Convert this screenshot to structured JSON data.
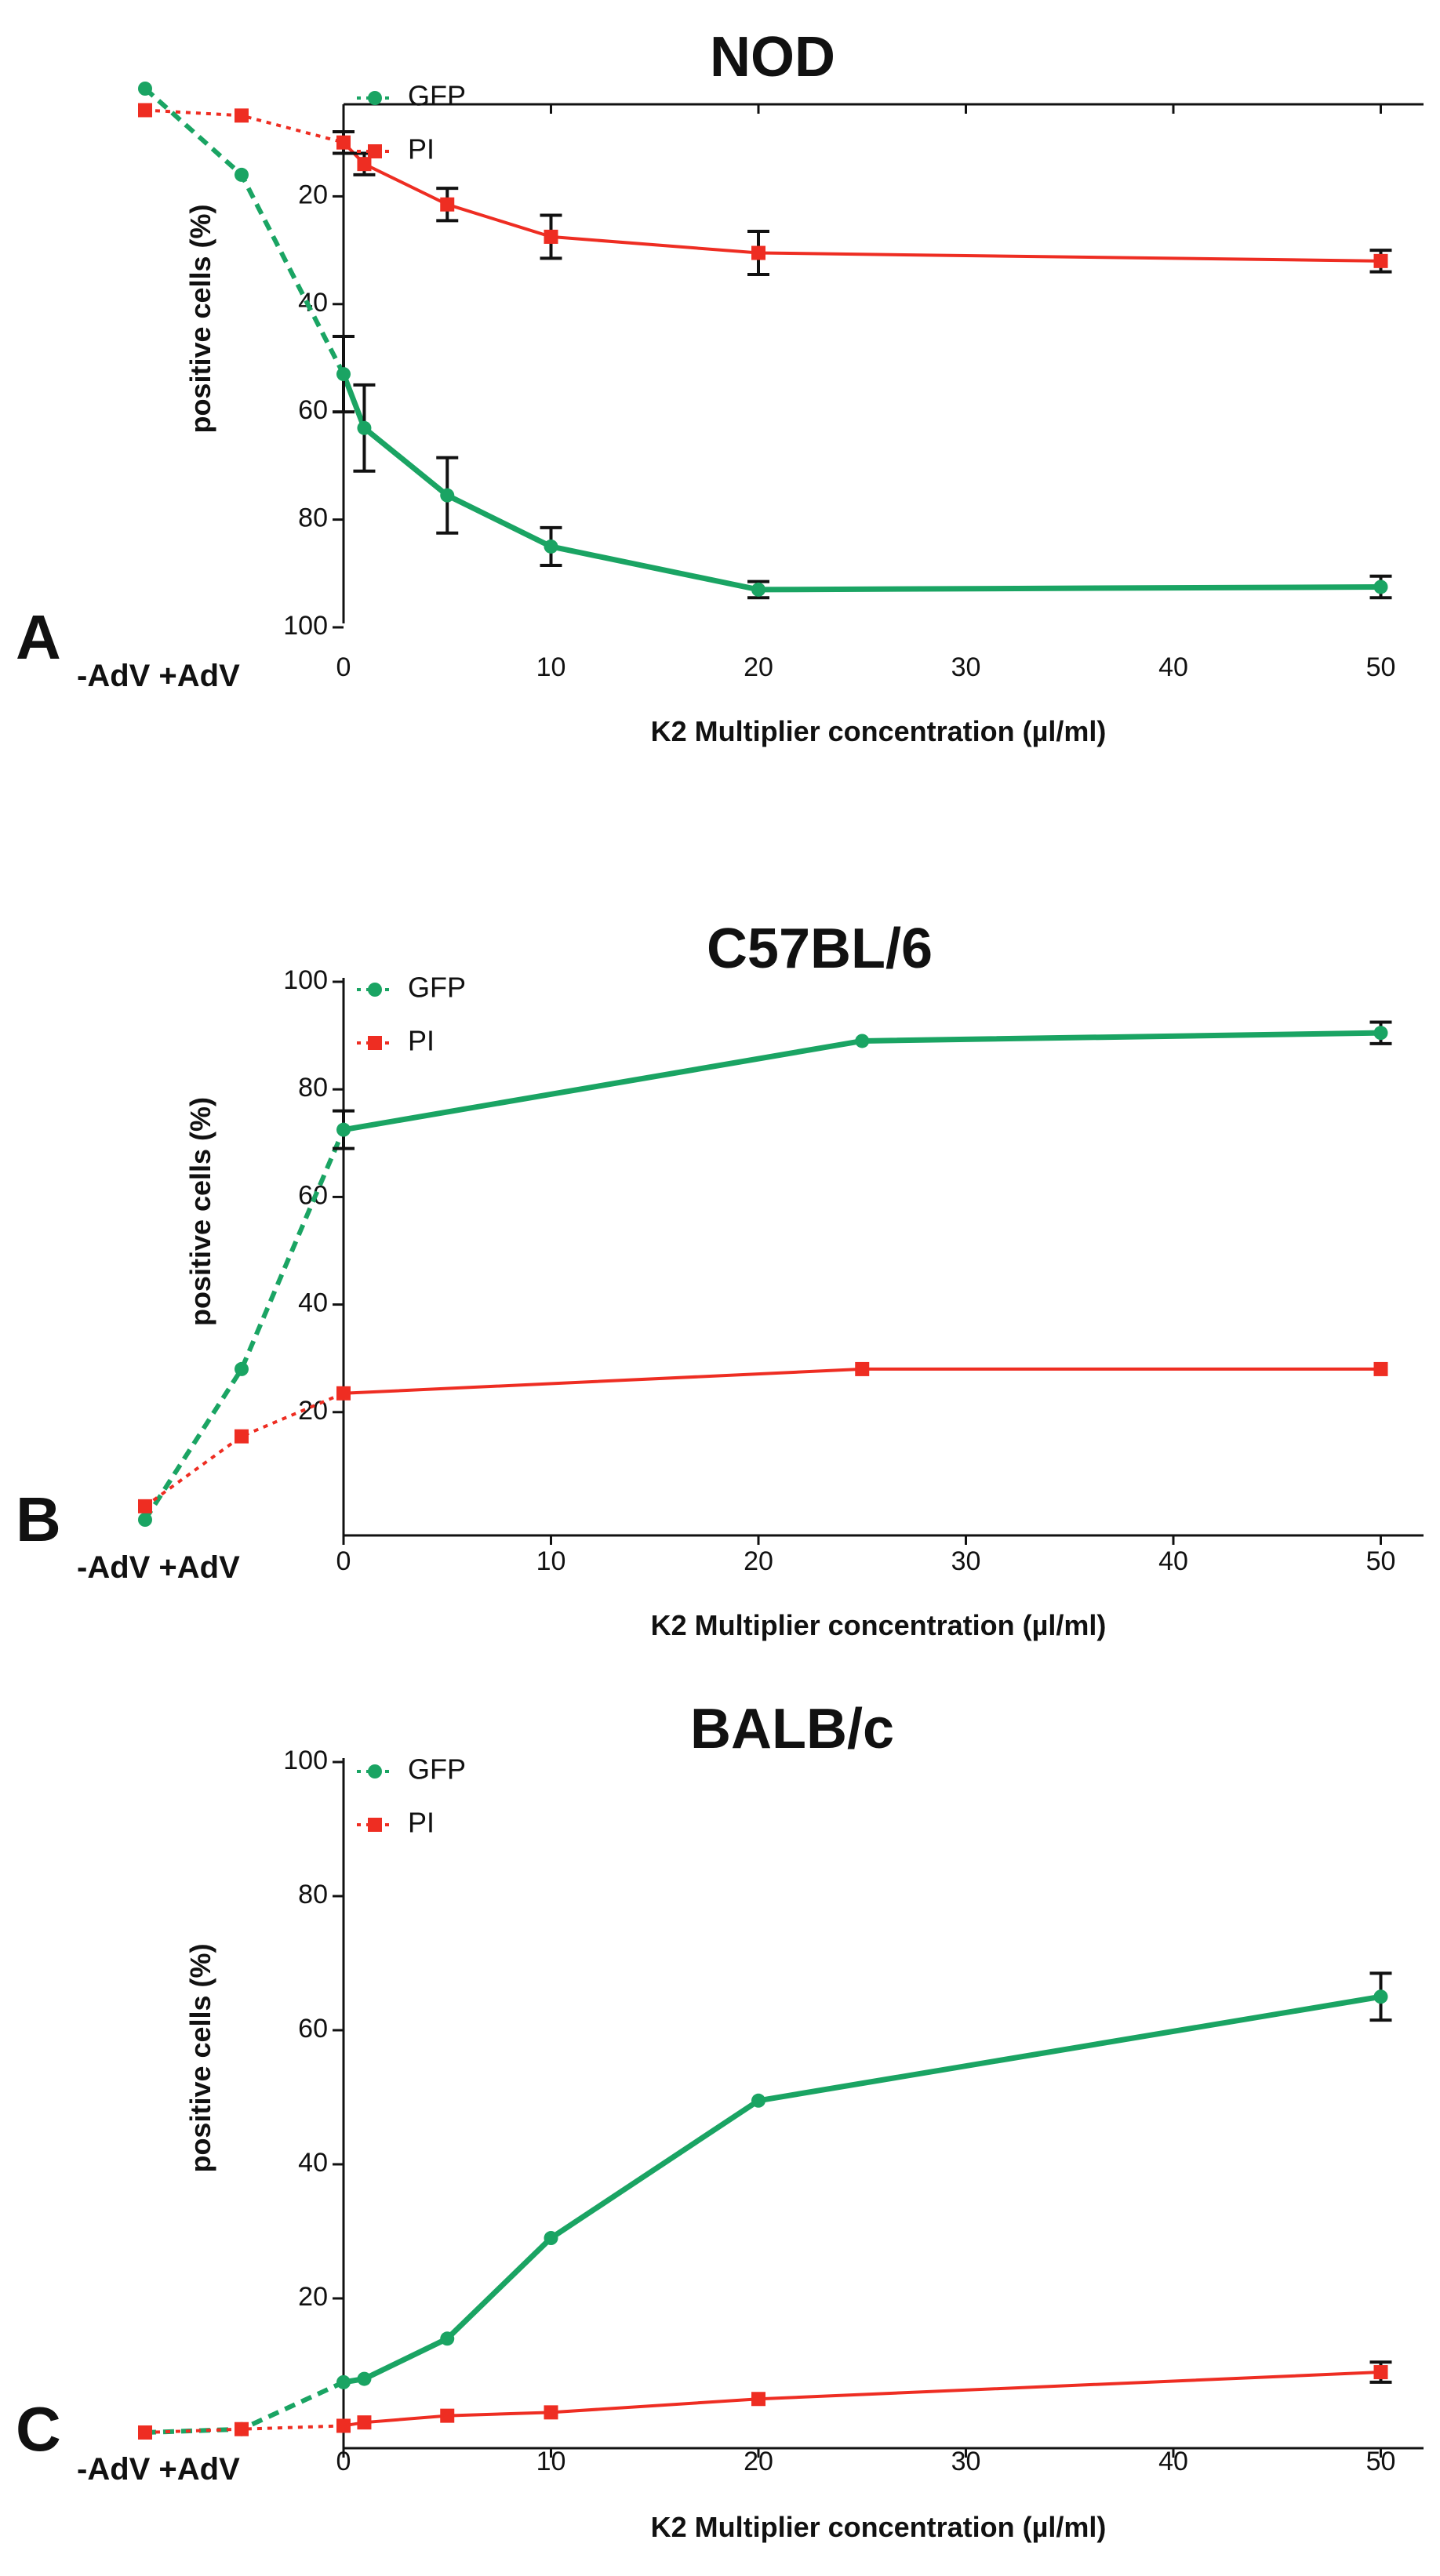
{
  "colors": {
    "gfp": "#1aa463",
    "pi": "#ee2d22",
    "axis": "#111111"
  },
  "chart_data": [
    {
      "type": "line",
      "panel": "A",
      "title": "NOD",
      "xlabel": "K2 Multiplier concentration (µl/ml)",
      "ylabel": "positive cells (%)",
      "ylim": [
        0,
        100
      ],
      "xlim": [
        0,
        50
      ],
      "x_ticks": [
        "0",
        "10",
        "20",
        "30",
        "40",
        "50"
      ],
      "y_ticks": [
        "20",
        "40",
        "60",
        "80",
        "100"
      ],
      "control_labels": [
        "-AdV",
        "+AdV"
      ],
      "legend_position": "top-left",
      "series": [
        {
          "name": "GFP",
          "color_key": "gfp",
          "marker": "circle",
          "controls": [
            {
              "label": "-AdV",
              "value": 0
            },
            {
              "label": "+AdV",
              "value": 16
            }
          ],
          "x": [
            0,
            1,
            5,
            10,
            20,
            50
          ],
          "values": [
            53,
            63,
            75.5,
            85,
            93,
            92.5
          ],
          "errors": [
            7,
            8,
            7,
            3.5,
            1.5,
            2
          ]
        },
        {
          "name": "PI",
          "color_key": "pi",
          "marker": "square",
          "controls": [
            {
              "label": "-AdV",
              "value": 4
            },
            {
              "label": "+AdV",
              "value": 5
            }
          ],
          "x": [
            0,
            1,
            5,
            10,
            20,
            50
          ],
          "values": [
            10,
            14,
            21.5,
            27.5,
            30.5,
            32
          ],
          "errors": [
            2,
            2,
            3,
            4,
            4,
            2
          ]
        }
      ]
    },
    {
      "type": "line",
      "panel": "B",
      "title": "C57BL/6",
      "xlabel": "K2 Multiplier concentration (µl/ml)",
      "ylabel": "positive cells (%)",
      "ylim": [
        0,
        100
      ],
      "xlim": [
        0,
        50
      ],
      "x_ticks": [
        "0",
        "10",
        "20",
        "30",
        "40",
        "50"
      ],
      "y_ticks": [
        "20",
        "40",
        "60",
        "80",
        "100"
      ],
      "control_labels": [
        "-AdV",
        "+AdV"
      ],
      "legend_position": "top-left",
      "series": [
        {
          "name": "GFP",
          "color_key": "gfp",
          "marker": "circle",
          "controls": [
            {
              "label": "-AdV",
              "value": 0
            },
            {
              "label": "+AdV",
              "value": 28
            }
          ],
          "x": [
            0,
            25,
            50
          ],
          "values": [
            72.5,
            89,
            90.5
          ],
          "errors": [
            3.5,
            0,
            2
          ]
        },
        {
          "name": "PI",
          "color_key": "pi",
          "marker": "square",
          "controls": [
            {
              "label": "-AdV",
              "value": 2.5
            },
            {
              "label": "+AdV",
              "value": 15.5
            }
          ],
          "x": [
            0,
            25,
            50
          ],
          "values": [
            23.5,
            28,
            28
          ],
          "errors": [
            0,
            0,
            0
          ]
        }
      ]
    },
    {
      "type": "line",
      "panel": "C",
      "title": "BALB/c",
      "xlabel": "K2 Multiplier concentration (µl/ml)",
      "ylabel": "positive cells (%)",
      "ylim": [
        0,
        100
      ],
      "xlim": [
        0,
        50
      ],
      "x_ticks": [
        "0",
        "10",
        "20",
        "30",
        "40",
        "50"
      ],
      "y_ticks": [
        "20",
        "40",
        "60",
        "80",
        "100"
      ],
      "control_labels": [
        "-AdV",
        "+AdV"
      ],
      "legend_position": "top-left",
      "series": [
        {
          "name": "GFP",
          "color_key": "gfp",
          "marker": "circle",
          "controls": [
            {
              "label": "-AdV",
              "value": 0
            },
            {
              "label": "+AdV",
              "value": 0.5
            }
          ],
          "x": [
            0,
            1,
            5,
            10,
            20,
            50
          ],
          "values": [
            7.5,
            8,
            14,
            29,
            49.5,
            65
          ],
          "errors": [
            0,
            0,
            0,
            0,
            0,
            3.5
          ]
        },
        {
          "name": "PI",
          "color_key": "pi",
          "marker": "square",
          "controls": [
            {
              "label": "-AdV",
              "value": 0
            },
            {
              "label": "+AdV",
              "value": 0.5
            }
          ],
          "x": [
            0,
            1,
            5,
            10,
            20,
            50
          ],
          "values": [
            1,
            1.5,
            2.5,
            3,
            5,
            9
          ],
          "errors": [
            0,
            0,
            0,
            0,
            0,
            1.5
          ]
        }
      ]
    }
  ]
}
